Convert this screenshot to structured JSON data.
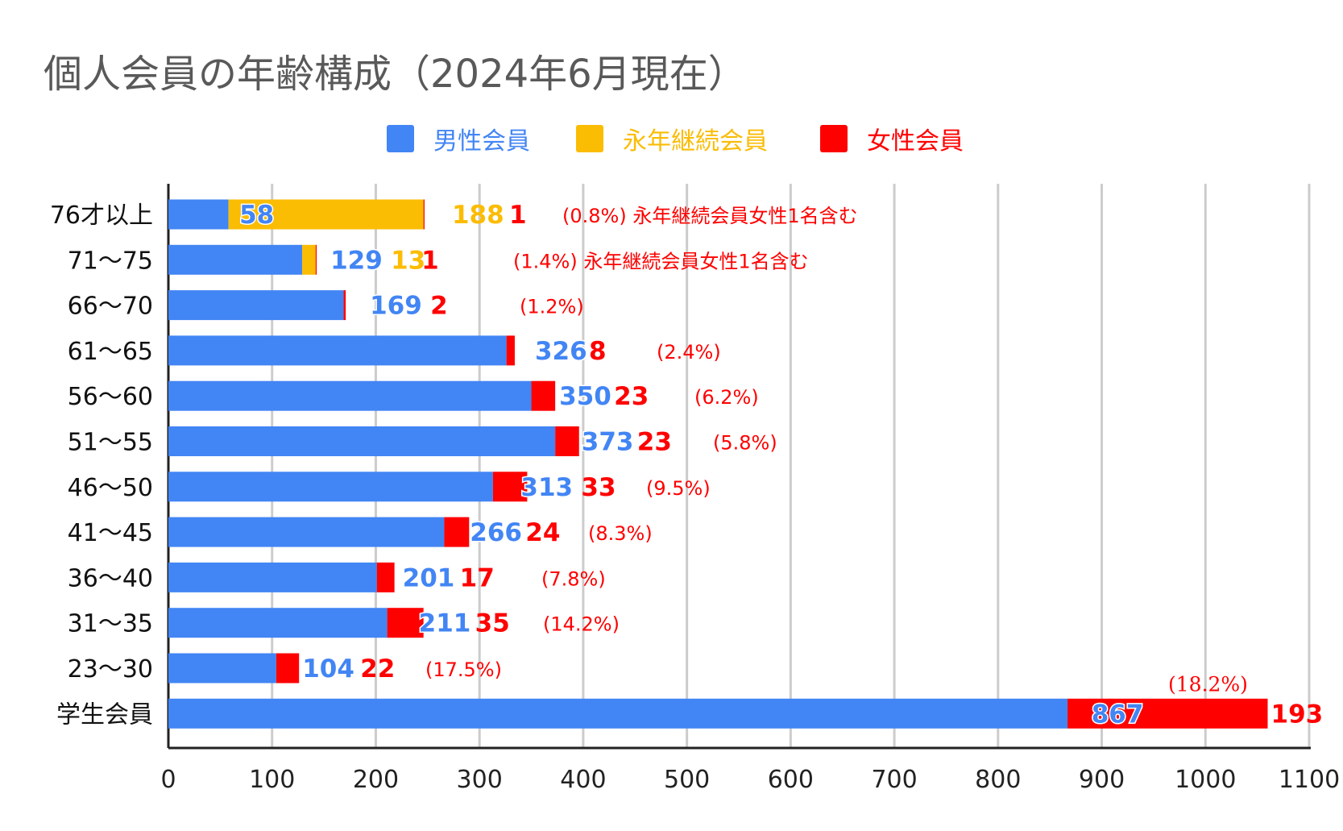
{
  "chart_data": {
    "type": "bar",
    "orientation": "horizontal",
    "stacked": true,
    "title": "個人会員の年齢構成（2024年6月現在）",
    "legend_position": "top",
    "grid": true,
    "xlim": [
      0,
      1100
    ],
    "x_ticks": [
      "0",
      "100",
      "200",
      "300",
      "400",
      "500",
      "600",
      "700",
      "800",
      "900",
      "1000",
      "1100"
    ],
    "categories": [
      "76才以上",
      "71～75",
      "66～70",
      "61～65",
      "56～60",
      "51～55",
      "46～50",
      "41～45",
      "36～40",
      "31～35",
      "23～30",
      "学生会員"
    ],
    "series": [
      {
        "name": "男性会員",
        "color": "#4285F4",
        "values": [
          58,
          129,
          169,
          326,
          350,
          373,
          313,
          266,
          201,
          211,
          104,
          867
        ]
      },
      {
        "name": "永年継続会員",
        "color": "#FBBC04",
        "values": [
          188,
          13,
          0,
          0,
          0,
          0,
          0,
          0,
          0,
          0,
          0,
          0
        ]
      },
      {
        "name": "女性会員",
        "color": "#FF0000",
        "values": [
          1,
          1,
          2,
          8,
          23,
          23,
          33,
          24,
          17,
          35,
          22,
          193
        ]
      }
    ],
    "annotations": [
      {
        "text": "(0.8%) 永年継続会員女性1名含む"
      },
      {
        "text": "(1.4%) 永年継続会員女性1名含む"
      },
      {
        "text": "(1.2%)"
      },
      {
        "text": "(2.4%)"
      },
      {
        "text": "(6.2%)"
      },
      {
        "text": "(5.8%)"
      },
      {
        "text": "(9.5%)"
      },
      {
        "text": "(8.3%)"
      },
      {
        "text": "(7.8%)"
      },
      {
        "text": "(14.2%)"
      },
      {
        "text": "(17.5%)"
      },
      {
        "text": "(18.2%)"
      }
    ]
  }
}
